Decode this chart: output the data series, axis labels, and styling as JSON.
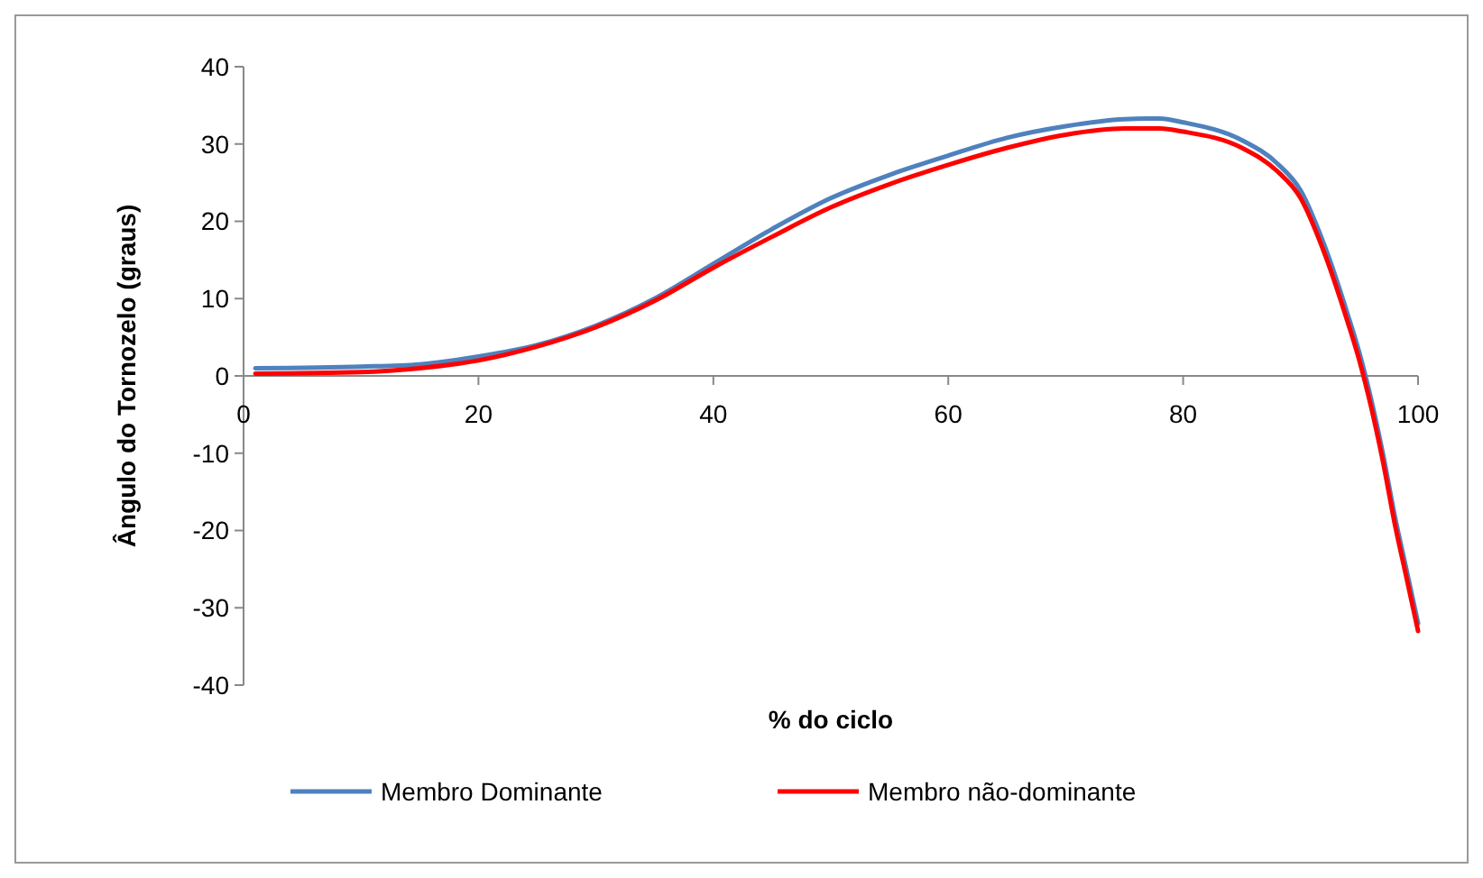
{
  "chart_data": {
    "type": "line",
    "xlabel": "% do ciclo",
    "ylabel": "Ângulo do Tornozelo (graus)",
    "xlim": [
      0,
      100
    ],
    "xticks": [
      0,
      20,
      40,
      60,
      80,
      100
    ],
    "ylim": [
      -40,
      40
    ],
    "yticks": [
      -40,
      -30,
      -20,
      -10,
      0,
      10,
      20,
      30,
      40
    ],
    "grid": false,
    "legend": "bottom",
    "marker": "none",
    "line_style": "solid",
    "x": [
      1,
      10,
      15,
      20,
      25,
      30,
      35,
      40,
      45,
      50,
      55,
      60,
      65,
      70,
      75,
      78,
      80,
      85,
      88,
      90,
      92,
      94,
      95,
      96,
      97,
      98,
      99,
      100
    ],
    "series": [
      {
        "name": "Membro Dominante",
        "color": "#4f81bd",
        "values": [
          1,
          1.2,
          1.5,
          2.5,
          4,
          6.5,
          10,
          14.5,
          19,
          23,
          26,
          28.5,
          30.8,
          32.3,
          33.2,
          33.3,
          32.8,
          30.5,
          27.5,
          24,
          17,
          8,
          3,
          -3,
          -10,
          -18,
          -25,
          -32
        ]
      },
      {
        "name": "Membro não-dominante",
        "color": "#ff0000",
        "values": [
          0.3,
          0.5,
          1,
          2,
          3.8,
          6.3,
          9.7,
          14,
          18,
          21.8,
          24.8,
          27.3,
          29.5,
          31.2,
          32,
          32,
          31.6,
          29.5,
          26.5,
          23,
          16,
          7,
          2,
          -4,
          -11,
          -19,
          -26,
          -33
        ]
      }
    ]
  }
}
